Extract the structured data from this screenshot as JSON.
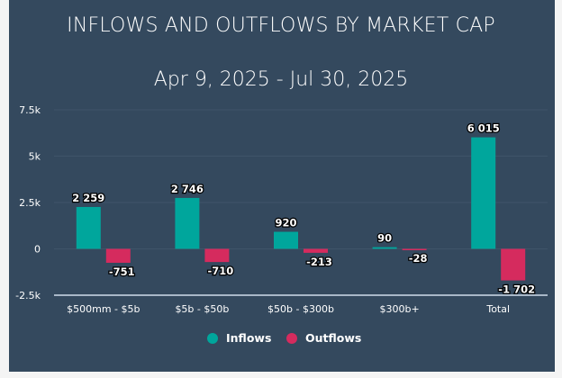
{
  "chart_data": {
    "type": "bar",
    "title": "INFLOWS AND OUTFLOWS BY MARKET CAP",
    "subtitle": "Apr 9, 2025 - Jul 30, 2025",
    "categories": [
      "$500mm - $5b",
      "$5b - $50b",
      "$50b - $300b",
      "$300b+",
      "Total"
    ],
    "series": [
      {
        "name": "Inflows",
        "color": "#00a69c",
        "values": [
          2259,
          2746,
          920,
          90,
          6015
        ],
        "labels": [
          "2 259",
          "2 746",
          "920",
          "90",
          "6 015"
        ]
      },
      {
        "name": "Outflows",
        "color": "#d52b5e",
        "values": [
          -751,
          -710,
          -213,
          -28,
          -1702
        ],
        "labels": [
          "-751",
          "-710",
          "-213",
          "-28",
          "-1 702"
        ]
      }
    ],
    "ylim": [
      -2500,
      7500
    ],
    "yticks": [
      -2500,
      0,
      2500,
      5000,
      7500
    ],
    "ytick_labels": [
      "-2.5k",
      "0",
      "2.5k",
      "5k",
      "7.5k"
    ],
    "grid": true,
    "legend": "bottom-center",
    "xlabel": "",
    "ylabel": ""
  }
}
